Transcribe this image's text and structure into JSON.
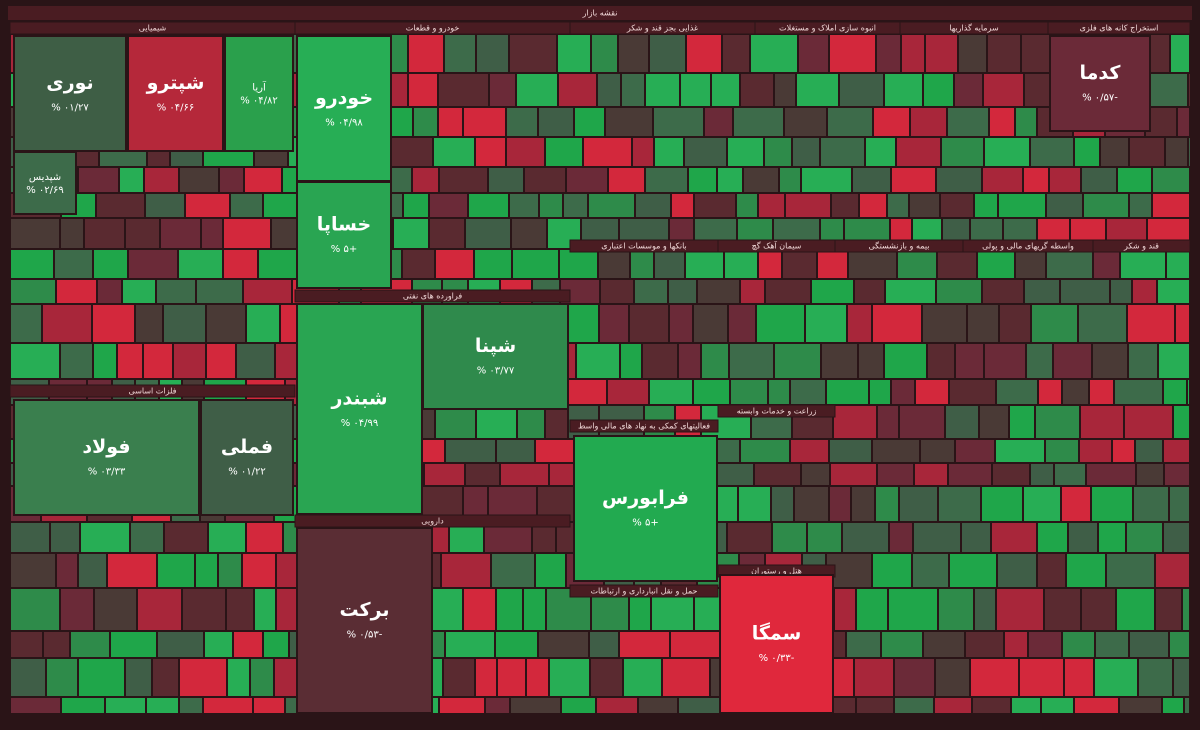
{
  "title": "نقشه بازار",
  "sectors": [
    {
      "name": "شیمیایی"
    },
    {
      "name": "خودرو و قطعات"
    },
    {
      "name": "غذایی بجز قند و شکر"
    },
    {
      "name": "انبوه سازی املاک و مستغلات"
    },
    {
      "name": "سرمایه گذاریها"
    },
    {
      "name": "استخراج کانه های فلزی"
    },
    {
      "name": "فلزات اساسی"
    },
    {
      "name": "فراورده های نفتی"
    },
    {
      "name": "دارویی"
    },
    {
      "name": "بانکها و موسسات اعتباری"
    },
    {
      "name": "سیمان آهک گچ"
    },
    {
      "name": "بیمه و بازنشستگی"
    },
    {
      "name": "واسطه گریهای مالی و پولی"
    },
    {
      "name": "قند و شکر"
    },
    {
      "name": "زراعت و خدمات وابسته"
    },
    {
      "name": "حمل و نقل انبارداری و ارتباطات"
    },
    {
      "name": "هتل و رستوران"
    },
    {
      "name": "فعالیتهای کمکی به نهاد های مالی واسط"
    }
  ],
  "tiles": [
    {
      "name": "نوری",
      "change": "% ۰۱/۲۷"
    },
    {
      "name": "شپترو",
      "change": "% ۰۴/۶۶"
    },
    {
      "name": "آریا",
      "change": "% ۰۴/۸۲"
    },
    {
      "name": "شپدیس",
      "change": "% ۰۲/۶۹"
    },
    {
      "name": "خودرو",
      "change": "% ۰۴/۹۸"
    },
    {
      "name": "خساپا",
      "change": "% ۵+"
    },
    {
      "name": "شپنا",
      "change": "% ۰۳/۷۷"
    },
    {
      "name": "شبندر",
      "change": "% ۰۴/۹۹"
    },
    {
      "name": "فولاد",
      "change": "% ۰۳/۳۳"
    },
    {
      "name": "فملی",
      "change": "% ۰۱/۲۲"
    },
    {
      "name": "برکت",
      "change": "% ۰/۵۳-"
    },
    {
      "name": "فرابورس",
      "change": "% ۵+"
    },
    {
      "name": "سمگا",
      "change": "% ۰/۳۳-"
    },
    {
      "name": "کدما",
      "change": "% ۰/۵۷-"
    }
  ]
}
